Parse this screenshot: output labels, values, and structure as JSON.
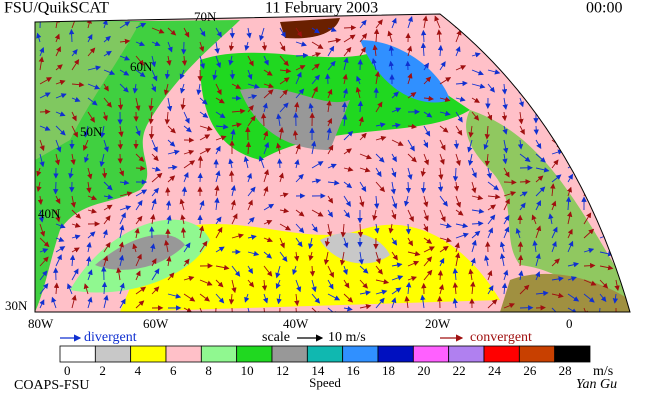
{
  "header": {
    "source": "FSU/QuikSCAT",
    "date": "11 February 2003",
    "time": "00:00"
  },
  "map": {
    "lat_labels": [
      "70N",
      "60N",
      "50N",
      "40N",
      "30N"
    ],
    "lon_labels": [
      "80W",
      "60W",
      "40W",
      "20W",
      "0"
    ]
  },
  "legend": {
    "divergent": "divergent",
    "scale": "scale",
    "scale_value": "10 m/s",
    "convergent": "convergent"
  },
  "colorbar": {
    "ticks": [
      0,
      2,
      4,
      6,
      8,
      10,
      12,
      14,
      16,
      18,
      20,
      22,
      24,
      26,
      28
    ],
    "colors": [
      "#ffffff",
      "#c8c8c8",
      "#ffff00",
      "#ffc0c8",
      "#90f890",
      "#20d820",
      "#989898",
      "#10b8b0",
      "#3090ff",
      "#0010c0",
      "#ff60ff",
      "#b080f0",
      "#ff0000",
      "#c84000",
      "#000000"
    ],
    "unit": "m/s",
    "title": "Speed"
  },
  "footer": {
    "credit": "COAPS-FSU",
    "signature": "Yan Gu"
  }
}
